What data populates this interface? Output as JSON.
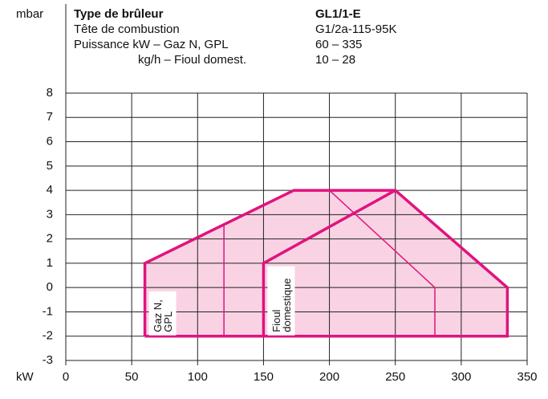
{
  "chart_data": {
    "type": "line",
    "ylabel": "mbar",
    "xlabel": "kW",
    "header": [
      {
        "label": "Type de brûleur",
        "value": "GL1/1-E"
      },
      {
        "label": "Tête de combustion",
        "value": "G1/2a-115-95K"
      },
      {
        "label": "Puissance kW – Gaz N, GPL",
        "value": "60 – 335"
      },
      {
        "label": "kg/h – Fioul domest.",
        "value": "10 – 28"
      }
    ],
    "xlim": [
      0,
      350
    ],
    "xticks": [
      0,
      50,
      100,
      150,
      200,
      250,
      300,
      350
    ],
    "ylim": [
      -3,
      8
    ],
    "yticks": [
      -3,
      -2,
      -1,
      0,
      1,
      2,
      3,
      4,
      5,
      6,
      7,
      8
    ],
    "grid": true,
    "fill": "#f9d3e3",
    "series": [
      {
        "label_lines": [
          "Gaz N,",
          "GPL"
        ],
        "color": "#e0137f",
        "width": 3.5,
        "fill": true,
        "x": [
          60,
          60,
          173,
          250,
          335,
          335,
          60
        ],
        "y": [
          -2,
          1,
          4,
          4,
          0,
          -2,
          -2
        ]
      },
      {
        "label_lines": [
          "Fioul",
          "domestique"
        ],
        "color": "#e0137f",
        "width": 3.5,
        "x": [
          150,
          150,
          250
        ],
        "y": [
          -2,
          1,
          4
        ]
      },
      {
        "color": "#e0137f",
        "width": 1.5,
        "x": [
          120,
          120
        ],
        "y": [
          2.6,
          -2
        ]
      },
      {
        "color": "#e0137f",
        "width": 1.5,
        "x": [
          200,
          280,
          280
        ],
        "y": [
          4,
          0,
          -2
        ]
      }
    ]
  }
}
